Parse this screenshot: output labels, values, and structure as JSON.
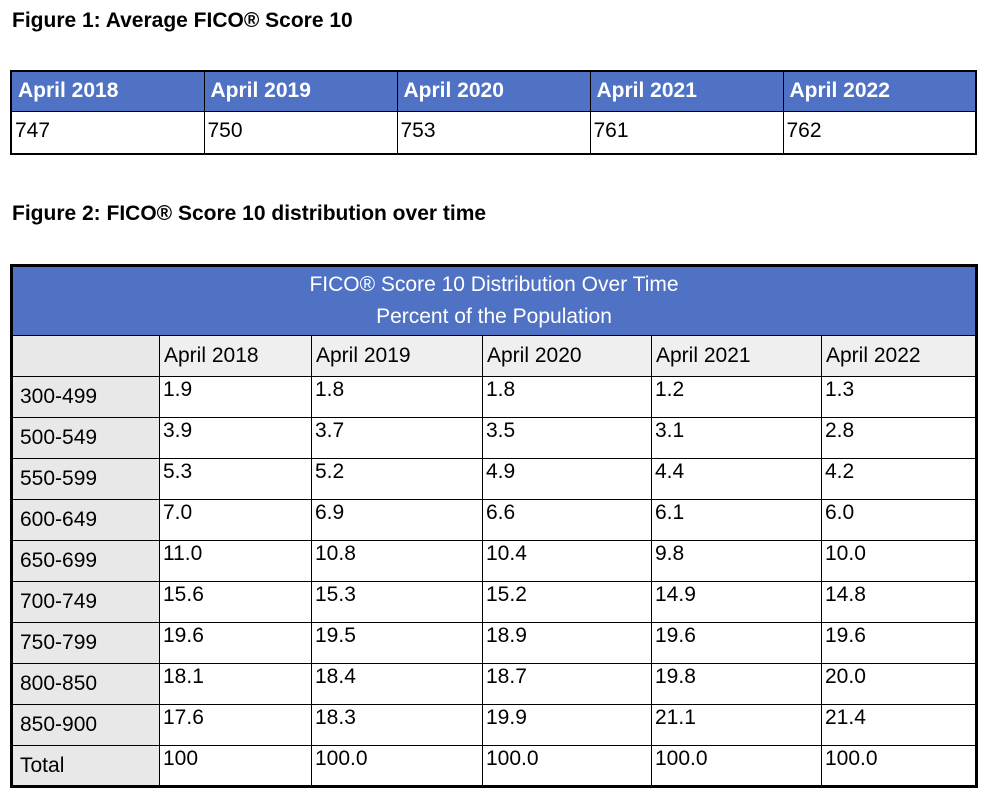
{
  "colors": {
    "header_blue": "#4F72C4",
    "label_col_gray": "#E8E8E8",
    "header_row_gray": "#EFEFEF",
    "border_black": "#000000"
  },
  "figure1": {
    "caption": "Figure 1: Average FICO® Score 10",
    "headers": [
      "April 2018",
      "April 2019",
      "April 2020",
      "April 2021",
      "April 2022"
    ],
    "values": [
      "747",
      "750",
      "753",
      "761",
      "762"
    ]
  },
  "figure2": {
    "caption": "Figure 2: FICO® Score 10 distribution over time",
    "table_title_line1": "FICO® Score 10 Distribution Over Time",
    "table_title_line2": "Percent of the Population",
    "corner_label": "",
    "headers": [
      "April 2018",
      "April 2019",
      "April 2020",
      "April 2021",
      "April 2022"
    ],
    "rows": [
      {
        "label": "300-499",
        "values": [
          "1.9",
          "1.8",
          "1.8",
          "1.2",
          "1.3"
        ]
      },
      {
        "label": "500-549",
        "values": [
          "3.9",
          "3.7",
          "3.5",
          "3.1",
          "2.8"
        ]
      },
      {
        "label": "550-599",
        "values": [
          "5.3",
          "5.2",
          "4.9",
          "4.4",
          "4.2"
        ]
      },
      {
        "label": "600-649",
        "values": [
          "7.0",
          "6.9",
          "6.6",
          "6.1",
          "6.0"
        ]
      },
      {
        "label": "650-699",
        "values": [
          "11.0",
          "10.8",
          "10.4",
          "9.8",
          "10.0"
        ]
      },
      {
        "label": "700-749",
        "values": [
          "15.6",
          "15.3",
          "15.2",
          "14.9",
          "14.8"
        ]
      },
      {
        "label": "750-799",
        "values": [
          "19.6",
          "19.5",
          "18.9",
          "19.6",
          "19.6"
        ]
      },
      {
        "label": "800-850",
        "values": [
          "18.1",
          "18.4",
          "18.7",
          "19.8",
          "20.0"
        ]
      },
      {
        "label": "850-900",
        "values": [
          "17.6",
          "18.3",
          "19.9",
          "21.1",
          "21.4"
        ]
      },
      {
        "label": "Total",
        "values": [
          "100",
          "100.0",
          "100.0",
          "100.0",
          "100.0"
        ]
      }
    ]
  }
}
